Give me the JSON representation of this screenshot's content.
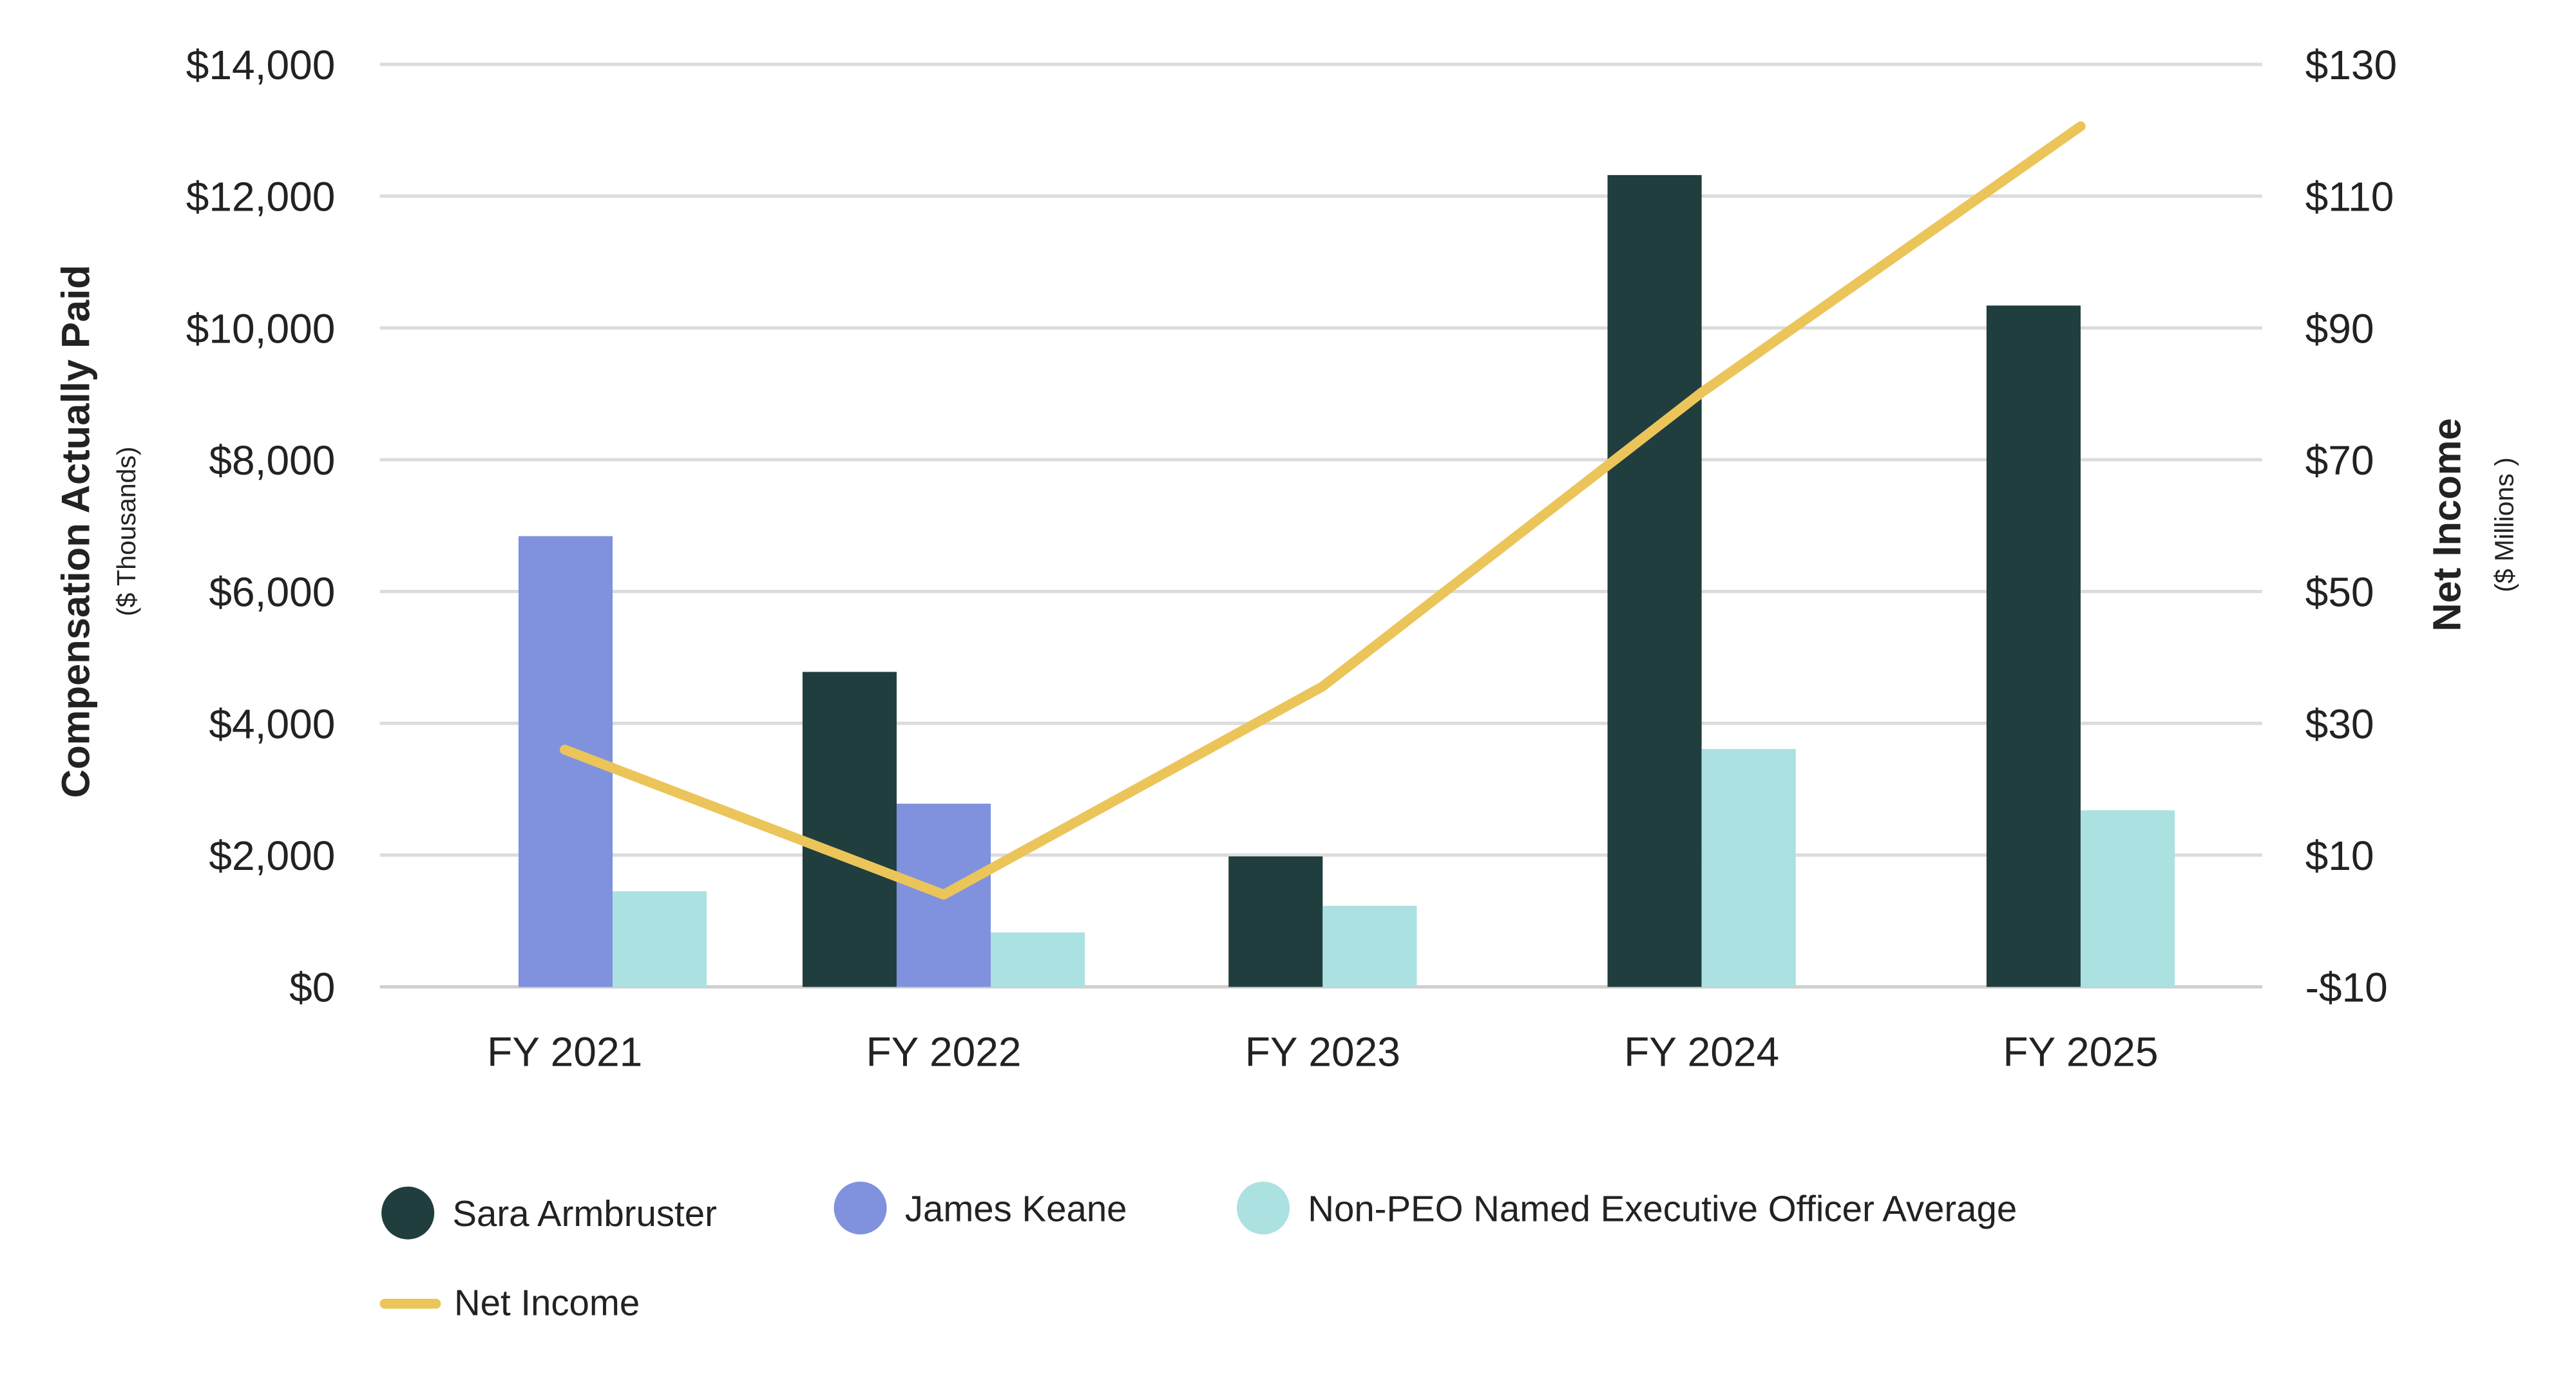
{
  "chart_data": {
    "type": "bar",
    "categories": [
      "FY 2021",
      "FY 2022",
      "FY 2023",
      "FY 2024",
      "FY 2025"
    ],
    "series": [
      {
        "name": "Sara Armbruster",
        "axis": "left",
        "color": "#213e3e",
        "values": [
          null,
          4780,
          1980,
          12320,
          10340
        ]
      },
      {
        "name": "James Keane",
        "axis": "left",
        "color": "#8092dd",
        "values": [
          6840,
          2780,
          null,
          null,
          null
        ]
      },
      {
        "name": "Non-PEO Named Executive Officer Average",
        "axis": "left",
        "color": "#ace1e2",
        "values": [
          1450,
          826,
          1230,
          3610,
          2680
        ]
      },
      {
        "name": "Net Income",
        "axis": "right",
        "type": "line",
        "color": "#ebc55a",
        "values": [
          26,
          4,
          35.6,
          80.2,
          120.6
        ]
      }
    ],
    "left_axis": {
      "title": "Compensation Actually Paid",
      "subtitle": "($ Thousands)",
      "ylim": [
        0,
        14000
      ],
      "ticks": [
        "$0",
        "$2,000",
        "$4,000",
        "$6,000",
        "$8,000",
        "$10,000",
        "$12,000",
        "$14,000"
      ]
    },
    "right_axis": {
      "title": "Net Income",
      "subtitle": "($ Millions )",
      "ylim": [
        -10,
        130
      ],
      "ticks": [
        "-$10",
        "$10",
        "$30",
        "$50",
        "$70",
        "$90",
        "$110",
        "$130"
      ]
    },
    "grid": true,
    "legend": "bottom-left"
  }
}
